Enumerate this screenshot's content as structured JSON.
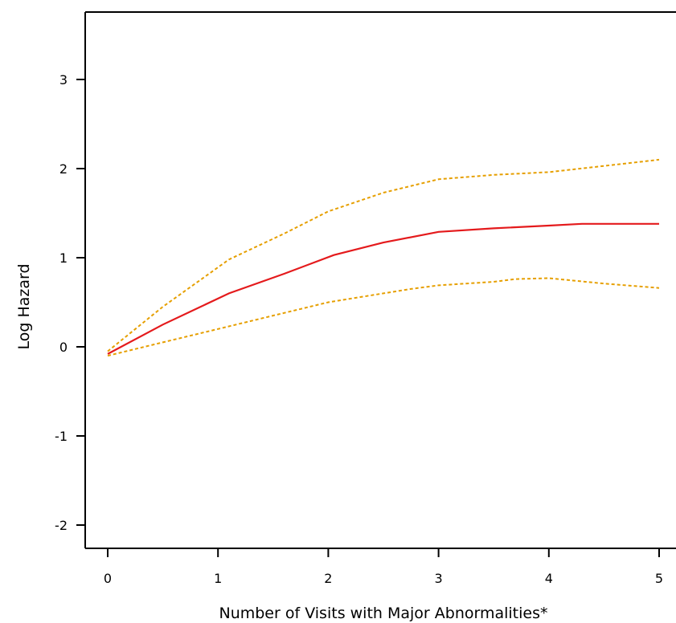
{
  "chart_data": {
    "type": "line",
    "title": "",
    "xlabel": "Number of Visits with Major Abnormalities*",
    "ylabel": "Log Hazard",
    "xlim": [
      -0.2,
      5
    ],
    "ylim": [
      -2.25,
      3.75
    ],
    "xticks": [
      0,
      1,
      2,
      3,
      4,
      5
    ],
    "xtick_labels": [
      "0",
      "1",
      "2",
      "3",
      "4",
      "5"
    ],
    "yticks": [
      -2,
      -1,
      0,
      1,
      2,
      3
    ],
    "ytick_labels": [
      "-2",
      "-1",
      "0",
      "1",
      "2",
      "3"
    ],
    "grid": false,
    "legend": "none",
    "series": [
      {
        "role": "estimate",
        "color": "#e41a1c",
        "dash": "solid",
        "x": [
          0,
          0.5,
          1.1,
          1.6,
          2.05,
          2.5,
          3.0,
          3.5,
          4.0,
          4.3,
          5.0
        ],
        "y": [
          -0.08,
          0.25,
          0.6,
          0.82,
          1.03,
          1.17,
          1.29,
          1.33,
          1.36,
          1.38,
          1.38
        ]
      },
      {
        "role": "upper-bound",
        "color": "#e69f00",
        "dash": "dotted",
        "x": [
          0,
          0.5,
          1.1,
          1.6,
          2.0,
          2.5,
          3.0,
          3.5,
          4.0,
          4.5,
          5.0
        ],
        "y": [
          -0.05,
          0.45,
          0.98,
          1.27,
          1.52,
          1.73,
          1.88,
          1.93,
          1.96,
          2.03,
          2.1
        ]
      },
      {
        "role": "lower-bound",
        "color": "#e69f00",
        "dash": "dotted",
        "x": [
          0,
          0.5,
          1.0,
          1.5,
          2.0,
          2.5,
          2.75,
          3.0,
          3.5,
          3.7,
          4.0,
          4.5,
          5.0
        ],
        "y": [
          -0.1,
          0.05,
          0.2,
          0.35,
          0.5,
          0.6,
          0.65,
          0.69,
          0.73,
          0.76,
          0.77,
          0.71,
          0.66
        ]
      }
    ]
  }
}
